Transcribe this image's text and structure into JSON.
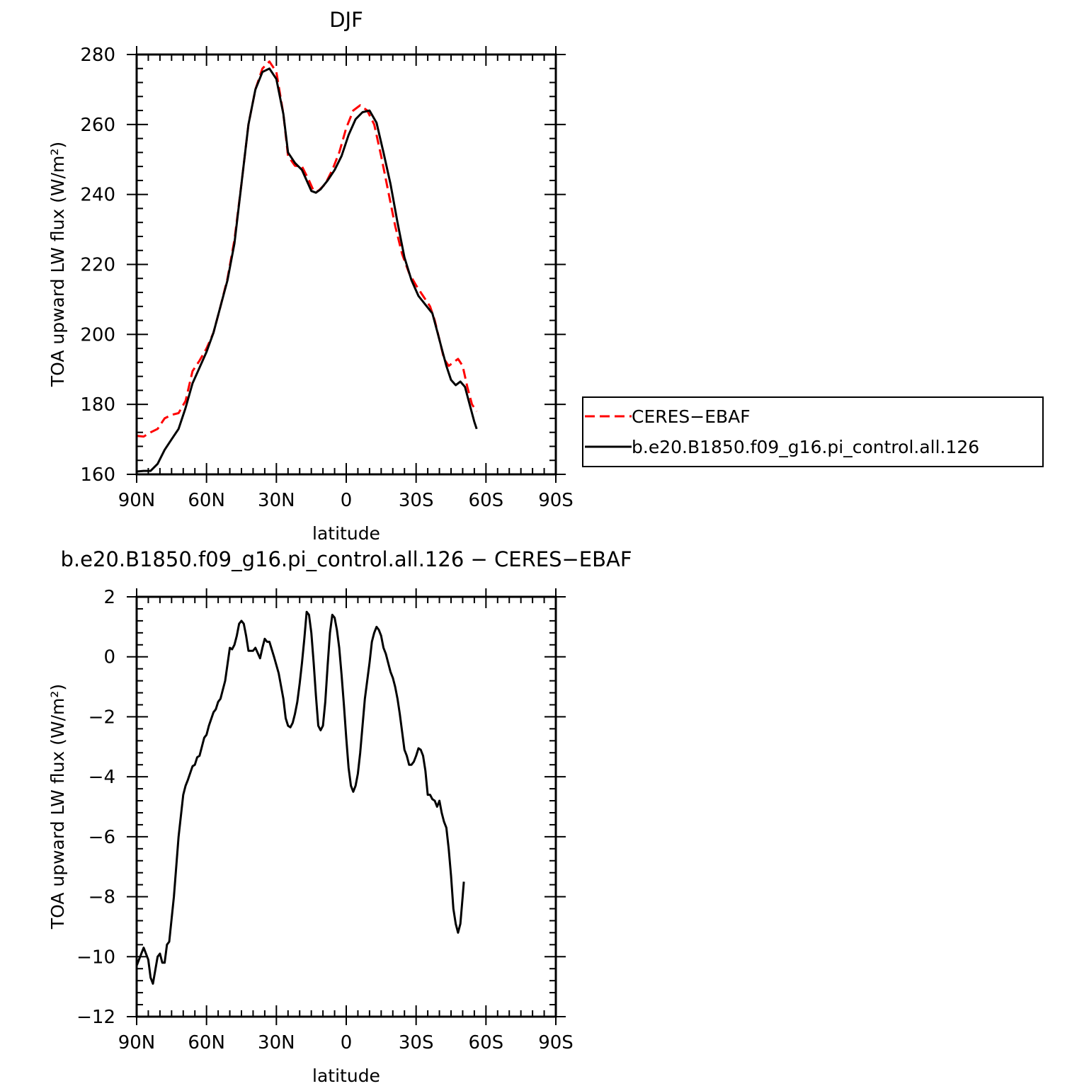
{
  "chart_data": [
    {
      "type": "line",
      "title": "DJF",
      "xlabel": "latitude",
      "ylabel": "TOA upward LW flux (W/m²)",
      "xlim": [
        90,
        -90
      ],
      "ylim": [
        160,
        280
      ],
      "x_ticks": [
        {
          "v": 90,
          "label": "90N"
        },
        {
          "v": 60,
          "label": "60N"
        },
        {
          "v": 30,
          "label": "30N"
        },
        {
          "v": 0,
          "label": "0"
        },
        {
          "v": -30,
          "label": "30S"
        },
        {
          "v": -60,
          "label": "60S"
        },
        {
          "v": -90,
          "label": "90S"
        }
      ],
      "y_ticks": [
        {
          "v": 160,
          "label": "160"
        },
        {
          "v": 180,
          "label": "180"
        },
        {
          "v": 200,
          "label": "200"
        },
        {
          "v": 220,
          "label": "220"
        },
        {
          "v": 240,
          "label": "240"
        },
        {
          "v": 260,
          "label": "260"
        },
        {
          "v": 280,
          "label": "280"
        }
      ],
      "legend": "right",
      "series": [
        {
          "name": "CERES−EBAF",
          "color": "#ff0000",
          "dash": "dashed",
          "points": [
            [
              90,
              171
            ],
            [
              87,
              170.8
            ],
            [
              84,
              172
            ],
            [
              81,
              173
            ],
            [
              78,
              176
            ],
            [
              75,
              177
            ],
            [
              72,
              177.5
            ],
            [
              69,
              181
            ],
            [
              66,
              189.5
            ],
            [
              63,
              192.5
            ],
            [
              60,
              196
            ],
            [
              57,
              200.5
            ],
            [
              54,
              208
            ],
            [
              51,
              216
            ],
            [
              48,
              227
            ],
            [
              45,
              243
            ],
            [
              42,
              260
            ],
            [
              39,
              270
            ],
            [
              36,
              276
            ],
            [
              33,
              278
            ],
            [
              30,
              275
            ],
            [
              27,
              263
            ],
            [
              25,
              251
            ],
            [
              22,
              248.2
            ],
            [
              19,
              248
            ],
            [
              16,
              244
            ],
            [
              14,
              241
            ],
            [
              12,
              241
            ],
            [
              9,
              243
            ],
            [
              6,
              247
            ],
            [
              3,
              252
            ],
            [
              0,
              259
            ],
            [
              -3,
              264
            ],
            [
              -6,
              265.5
            ],
            [
              -9,
              264
            ],
            [
              -12,
              260
            ],
            [
              -15,
              251
            ],
            [
              -18,
              241
            ],
            [
              -21,
              231
            ],
            [
              -24,
              223
            ],
            [
              -27,
              217.5
            ],
            [
              -30,
              214
            ],
            [
              -33,
              211
            ],
            [
              -36,
              208
            ],
            [
              -38,
              204
            ],
            [
              -40,
              198.5
            ],
            [
              -42,
              193
            ],
            [
              -44,
              191
            ],
            [
              -46,
              192
            ],
            [
              -48,
              193
            ],
            [
              -50,
              191
            ],
            [
              -52,
              185
            ],
            [
              -54,
              180
            ],
            [
              -56,
              178
            ]
          ]
        },
        {
          "name": "b.e20.B1850.f09_g16.pi_control.all.126",
          "color": "#000000",
          "dash": "solid",
          "points": [
            [
              90,
              160.8
            ],
            [
              87,
              161
            ],
            [
              84,
              161
            ],
            [
              81,
              163
            ],
            [
              78,
              167
            ],
            [
              75,
              170
            ],
            [
              72,
              173
            ],
            [
              69,
              179
            ],
            [
              66,
              186
            ],
            [
              63,
              190.5
            ],
            [
              60,
              195
            ],
            [
              57,
              200.5
            ],
            [
              54,
              208
            ],
            [
              51,
              215.5
            ],
            [
              48,
              226
            ],
            [
              45,
              243
            ],
            [
              42,
              260
            ],
            [
              39,
              270
            ],
            [
              36,
              275
            ],
            [
              33,
              276
            ],
            [
              30,
              273
            ],
            [
              27,
              263
            ],
            [
              25,
              252
            ],
            [
              22,
              249
            ],
            [
              19,
              247
            ],
            [
              17,
              244
            ],
            [
              15,
              241
            ],
            [
              13,
              240.5
            ],
            [
              11,
              241.5
            ],
            [
              8,
              244
            ],
            [
              5,
              247
            ],
            [
              2,
              251
            ],
            [
              -1,
              257
            ],
            [
              -4,
              261.5
            ],
            [
              -7,
              263.5
            ],
            [
              -10,
              264
            ],
            [
              -13,
              260.5
            ],
            [
              -16,
              252
            ],
            [
              -19,
              243
            ],
            [
              -22,
              232
            ],
            [
              -25,
              222
            ],
            [
              -28,
              215.5
            ],
            [
              -31,
              211
            ],
            [
              -34,
              208.5
            ],
            [
              -37,
              206
            ],
            [
              -39,
              201
            ],
            [
              -41,
              196
            ],
            [
              -43,
              191
            ],
            [
              -45,
              187
            ],
            [
              -47,
              185.5
            ],
            [
              -49,
              186.5
            ],
            [
              -51,
              185
            ],
            [
              -53,
              180
            ],
            [
              -55,
              175
            ],
            [
              -56,
              173
            ]
          ]
        }
      ]
    },
    {
      "type": "line",
      "title": "b.e20.B1850.f09_g16.pi_control.all.126 − CERES−EBAF",
      "xlabel": "latitude",
      "ylabel": "TOA upward LW flux (W/m²)",
      "xlim": [
        90,
        -90
      ],
      "ylim": [
        -12,
        2
      ],
      "x_ticks": [
        {
          "v": 90,
          "label": "90N"
        },
        {
          "v": 60,
          "label": "60N"
        },
        {
          "v": 30,
          "label": "30N"
        },
        {
          "v": 0,
          "label": "0"
        },
        {
          "v": -30,
          "label": "30S"
        },
        {
          "v": -60,
          "label": "60S"
        },
        {
          "v": -90,
          "label": "90S"
        }
      ],
      "y_ticks": [
        {
          "v": -12,
          "label": "−12"
        },
        {
          "v": -10,
          "label": "−10"
        },
        {
          "v": -8,
          "label": "−8"
        },
        {
          "v": -6,
          "label": "−6"
        },
        {
          "v": -4,
          "label": "−4"
        },
        {
          "v": -2,
          "label": "−2"
        },
        {
          "v": 0,
          "label": "0"
        },
        {
          "v": 2,
          "label": "2"
        }
      ],
      "series": [
        {
          "name": "",
          "color": "#000000",
          "dash": "solid",
          "points": [
            [
              90,
              -10.3
            ],
            [
              89,
              -10.1
            ],
            [
              87,
              -9.7
            ],
            [
              85,
              -10.1
            ],
            [
              84,
              -10.7
            ],
            [
              83,
              -10.9
            ],
            [
              81,
              -10.0
            ],
            [
              80,
              -9.9
            ],
            [
              79,
              -10.2
            ],
            [
              78,
              -10.2
            ],
            [
              77,
              -9.6
            ],
            [
              76,
              -9.5
            ],
            [
              74,
              -8.0
            ],
            [
              72,
              -6.0
            ],
            [
              70,
              -4.6
            ],
            [
              69,
              -4.3
            ],
            [
              68,
              -4.1
            ],
            [
              66,
              -3.65
            ],
            [
              65,
              -3.6
            ],
            [
              64,
              -3.35
            ],
            [
              63,
              -3.3
            ],
            [
              61,
              -2.7
            ],
            [
              60,
              -2.6
            ],
            [
              59,
              -2.3
            ],
            [
              57,
              -1.85
            ],
            [
              56,
              -1.75
            ],
            [
              55,
              -1.5
            ],
            [
              54,
              -1.4
            ],
            [
              53,
              -1.1
            ],
            [
              52,
              -0.8
            ],
            [
              50,
              0.3
            ],
            [
              49,
              0.25
            ],
            [
              48,
              0.4
            ],
            [
              47,
              0.7
            ],
            [
              46,
              1.1
            ],
            [
              45,
              1.2
            ],
            [
              44,
              1.1
            ],
            [
              43,
              0.7
            ],
            [
              42,
              0.2
            ],
            [
              40,
              0.2
            ],
            [
              39,
              0.3
            ],
            [
              37,
              -0.05
            ],
            [
              36,
              0.3
            ],
            [
              35,
              0.6
            ],
            [
              34,
              0.5
            ],
            [
              33,
              0.5
            ],
            [
              31,
              0.0
            ],
            [
              29,
              -0.55
            ],
            [
              27,
              -1.4
            ],
            [
              26,
              -2.05
            ],
            [
              25,
              -2.3
            ],
            [
              24,
              -2.35
            ],
            [
              23,
              -2.2
            ],
            [
              22,
              -1.9
            ],
            [
              21,
              -1.5
            ],
            [
              20,
              -0.9
            ],
            [
              19,
              -0.2
            ],
            [
              18,
              0.6
            ],
            [
              17,
              1.5
            ],
            [
              16,
              1.4
            ],
            [
              15,
              0.8
            ],
            [
              14,
              -0.2
            ],
            [
              13,
              -1.3
            ],
            [
              12,
              -2.3
            ],
            [
              11,
              -2.45
            ],
            [
              10,
              -2.3
            ],
            [
              9,
              -1.5
            ],
            [
              8,
              -0.3
            ],
            [
              7,
              0.8
            ],
            [
              6,
              1.4
            ],
            [
              5,
              1.3
            ],
            [
              4,
              0.9
            ],
            [
              3,
              0.3
            ],
            [
              2,
              -0.6
            ],
            [
              1,
              -1.6
            ],
            [
              0,
              -2.7
            ],
            [
              -1,
              -3.7
            ],
            [
              -2,
              -4.3
            ],
            [
              -3,
              -4.5
            ],
            [
              -4,
              -4.3
            ],
            [
              -5,
              -3.9
            ],
            [
              -6,
              -3.2
            ],
            [
              -7,
              -2.3
            ],
            [
              -8,
              -1.4
            ],
            [
              -9,
              -0.8
            ],
            [
              -10,
              -0.2
            ],
            [
              -11,
              0.5
            ],
            [
              -12,
              0.8
            ],
            [
              -13,
              1.0
            ],
            [
              -14,
              0.9
            ],
            [
              -15,
              0.7
            ],
            [
              -16,
              0.3
            ],
            [
              -17,
              0.1
            ],
            [
              -18,
              -0.2
            ],
            [
              -19,
              -0.5
            ],
            [
              -20,
              -0.7
            ],
            [
              -21,
              -1.0
            ],
            [
              -22,
              -1.4
            ],
            [
              -23,
              -1.9
            ],
            [
              -24,
              -2.5
            ],
            [
              -25,
              -3.1
            ],
            [
              -26,
              -3.3
            ],
            [
              -27,
              -3.6
            ],
            [
              -28,
              -3.6
            ],
            [
              -29,
              -3.5
            ],
            [
              -30,
              -3.3
            ],
            [
              -31,
              -3.05
            ],
            [
              -32,
              -3.1
            ],
            [
              -33,
              -3.3
            ],
            [
              -34,
              -3.8
            ],
            [
              -35,
              -4.6
            ],
            [
              -36,
              -4.6
            ],
            [
              -37,
              -4.75
            ],
            [
              -38,
              -4.8
            ],
            [
              -39,
              -5.0
            ],
            [
              -40,
              -4.8
            ],
            [
              -41,
              -5.2
            ],
            [
              -42,
              -5.5
            ],
            [
              -43,
              -5.7
            ],
            [
              -44,
              -6.4
            ],
            [
              -45,
              -7.3
            ],
            [
              -46,
              -8.4
            ],
            [
              -47,
              -8.9
            ],
            [
              -48,
              -9.2
            ],
            [
              -49,
              -8.9
            ],
            [
              -50,
              -8.0
            ],
            [
              -50.5,
              -7.5
            ]
          ]
        }
      ]
    }
  ]
}
